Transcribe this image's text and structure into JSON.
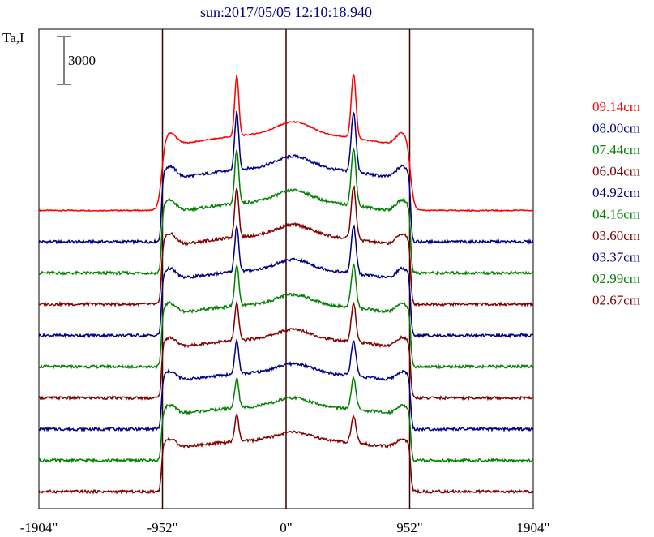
{
  "chart_data": {
    "type": "line",
    "title": "sun:2017/05/05 12:10:18.940",
    "ylabel": "Ta,I",
    "scale_bar_label": "3000",
    "xlim": [
      -1904,
      1904
    ],
    "x_ticks": [
      {
        "value": -1904,
        "label": "-1904\""
      },
      {
        "value": -952,
        "label": "-952\""
      },
      {
        "value": 0,
        "label": "0\""
      },
      {
        "value": 952,
        "label": "952\""
      },
      {
        "value": 1904,
        "label": "1904\""
      }
    ],
    "vertical_lines": [
      -952,
      0,
      952
    ],
    "legend_position": "right",
    "series": [
      {
        "name": "09.14cm",
        "color": "#ff0000",
        "peak": 1.0
      },
      {
        "name": "08.00cm",
        "color": "#000080",
        "peak": 0.92
      },
      {
        "name": "07.44cm",
        "color": "#008000",
        "peak": 0.84
      },
      {
        "name": "06.04cm",
        "color": "#800000",
        "peak": 0.76
      },
      {
        "name": "04.92cm",
        "color": "#000080",
        "peak": 0.66
      },
      {
        "name": "04.16cm",
        "color": "#008000",
        "peak": 0.56
      },
      {
        "name": "03.60cm",
        "color": "#800000",
        "peak": 0.46
      },
      {
        "name": "03.37cm",
        "color": "#000080",
        "peak": 0.38
      },
      {
        "name": "02.99cm",
        "color": "#008000",
        "peak": 0.3
      },
      {
        "name": "02.67cm",
        "color": "#800000",
        "peak": 0.22
      }
    ]
  }
}
